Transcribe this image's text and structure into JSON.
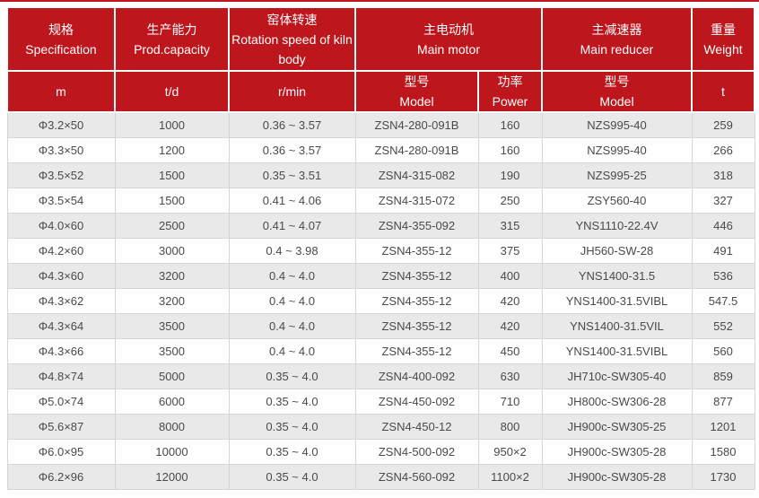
{
  "theme": {
    "accent_red": "#be161d",
    "row_alt_bg": "#e9e9e9",
    "header_text_color": "#ffffff",
    "body_text_color": "#4a4a4a"
  },
  "table": {
    "header": {
      "groups": [
        {
          "cn": "规格",
          "en": "Specification"
        },
        {
          "cn": "生产能力",
          "en": "Prod.capacity"
        },
        {
          "cn": "窑体转速",
          "en": "Rotation speed of kiln body"
        },
        {
          "cn": "主电动机",
          "en": "Main motor"
        },
        {
          "cn": "主减速器",
          "en": "Main reducer"
        },
        {
          "cn": "重量",
          "en": "Weight"
        }
      ],
      "sub": [
        {
          "label": "m"
        },
        {
          "label": "t/d"
        },
        {
          "label": "r/min"
        },
        {
          "cn": "型号",
          "en": "Model"
        },
        {
          "cn": "功率",
          "en": "Power"
        },
        {
          "cn": "型号",
          "en": "Model"
        },
        {
          "label": "t"
        }
      ]
    },
    "columns": [
      "spec",
      "capacity",
      "speed",
      "motor_model",
      "power",
      "reducer_model",
      "weight"
    ],
    "rows": [
      {
        "spec": "Φ3.2×50",
        "capacity": "1000",
        "speed": "0.36 ~ 3.57",
        "motor_model": "ZSN4-280-091B",
        "power": "160",
        "reducer_model": "NZS995-40",
        "weight": "259"
      },
      {
        "spec": "Φ3.3×50",
        "capacity": "1200",
        "speed": "0.36 ~ 3.57",
        "motor_model": "ZSN4-280-091B",
        "power": "160",
        "reducer_model": "NZS995-40",
        "weight": "266"
      },
      {
        "spec": "Φ3.5×52",
        "capacity": "1500",
        "speed": "0.35 ~ 3.51",
        "motor_model": "ZSN4-315-082",
        "power": "190",
        "reducer_model": "NZS995-25",
        "weight": "318"
      },
      {
        "spec": "Φ3.5×54",
        "capacity": "1500",
        "speed": "0.41 ~ 4.06",
        "motor_model": "ZSN4-315-072",
        "power": "250",
        "reducer_model": "ZSY560-40",
        "weight": "327"
      },
      {
        "spec": "Φ4.0×60",
        "capacity": "2500",
        "speed": "0.41 ~ 4.07",
        "motor_model": "ZSN4-355-092",
        "power": "315",
        "reducer_model": "YNS1110-22.4V",
        "weight": "446"
      },
      {
        "spec": "Φ4.2×60",
        "capacity": "3000",
        "speed": "0.4 ~ 3.98",
        "motor_model": "ZSN4-355-12",
        "power": "375",
        "reducer_model": "JH560-SW-28",
        "weight": "491"
      },
      {
        "spec": "Φ4.3×60",
        "capacity": "3200",
        "speed": "0.4 ~ 4.0",
        "motor_model": "ZSN4-355-12",
        "power": "400",
        "reducer_model": "YNS1400-31.5",
        "weight": "536"
      },
      {
        "spec": "Φ4.3×62",
        "capacity": "3200",
        "speed": "0.4 ~ 4.0",
        "motor_model": "ZSN4-355-12",
        "power": "420",
        "reducer_model": "YNS1400-31.5VIBL",
        "weight": "547.5"
      },
      {
        "spec": "Φ4.3×64",
        "capacity": "3500",
        "speed": "0.4 ~ 4.0",
        "motor_model": "ZSN4-355-12",
        "power": "420",
        "reducer_model": "YNS1400-31.5VIL",
        "weight": "552"
      },
      {
        "spec": "Φ4.3×66",
        "capacity": "3500",
        "speed": "0.4 ~ 4.0",
        "motor_model": "ZSN4-355-12",
        "power": "450",
        "reducer_model": "YNS1400-31.5VIBL",
        "weight": "560"
      },
      {
        "spec": "Φ4.8×74",
        "capacity": "5000",
        "speed": "0.35 ~ 4.0",
        "motor_model": "ZSN4-400-092",
        "power": "630",
        "reducer_model": "JH710c-SW305-40",
        "weight": "859"
      },
      {
        "spec": "Φ5.0×74",
        "capacity": "6000",
        "speed": "0.35 ~ 4.0",
        "motor_model": "ZSN4-450-092",
        "power": "710",
        "reducer_model": "JH800c-SW306-28",
        "weight": "877"
      },
      {
        "spec": "Φ5.6×87",
        "capacity": "8000",
        "speed": "0.35 ~ 4.0",
        "motor_model": "ZSN4-450-12",
        "power": "800",
        "reducer_model": "JH900c-SW305-25",
        "weight": "1201"
      },
      {
        "spec": "Φ6.0×95",
        "capacity": "10000",
        "speed": "0.35 ~ 4.0",
        "motor_model": "ZSN4-500-092",
        "power": "950×2",
        "reducer_model": "JH900c-SW305-28",
        "weight": "1580"
      },
      {
        "spec": "Φ6.2×96",
        "capacity": "12000",
        "speed": "0.35 ~ 4.0",
        "motor_model": "ZSN4-560-092",
        "power": "1100×2",
        "reducer_model": "JH900c-SW305-28",
        "weight": "1730"
      }
    ]
  }
}
